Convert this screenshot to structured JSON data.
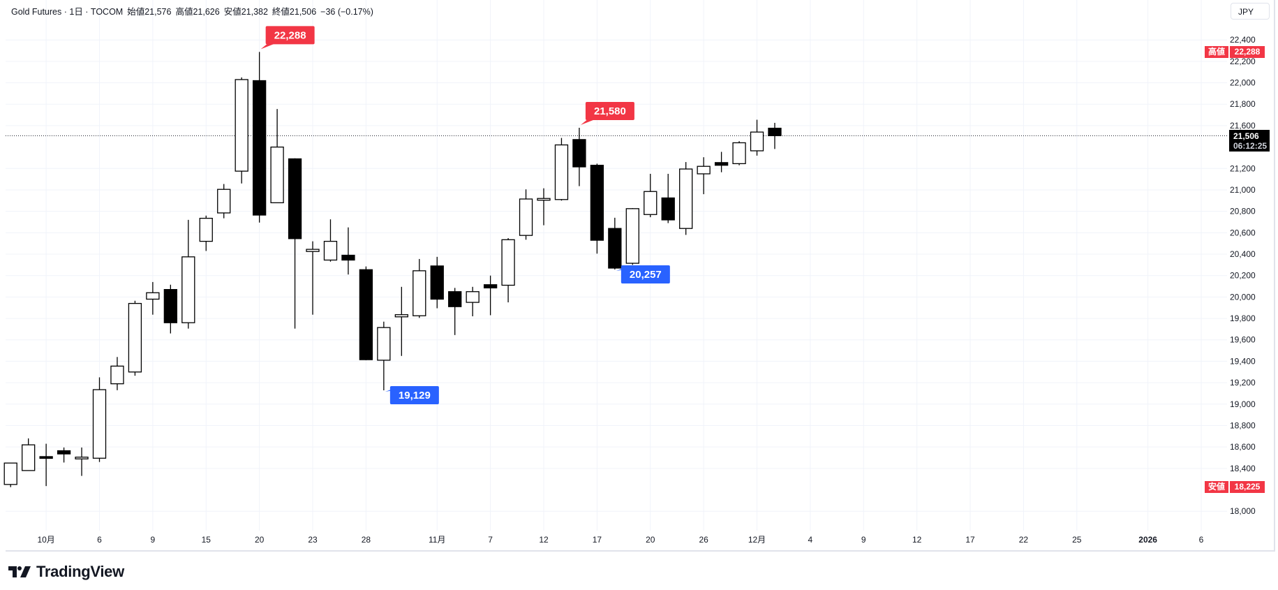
{
  "legend": {
    "symbol": "Gold Futures · 1日 · TOCOM",
    "open": "始値21,576",
    "high": "高値21,626",
    "low": "安値21,382",
    "close": "終値21,506",
    "change": "−36 (−0.17%)"
  },
  "currency_button": "JPY",
  "price_scale_badges": {
    "high_label": "高値",
    "high_value": "22,288",
    "low_label": "安値",
    "low_value": "18,225",
    "last_value": "21,506",
    "countdown": "06:12:25"
  },
  "brand": "TradingView",
  "colors": {
    "up_body": "#ffffff",
    "down_body": "#000000",
    "wick": "#000000",
    "high_marker": "#f23645",
    "low_marker": "#2962ff",
    "grid": "#f0f3fa"
  },
  "chart_data": {
    "type": "candlestick",
    "title": "Gold Futures · 1日 · TOCOM",
    "ylim": [
      17750,
      22600
    ],
    "grid": true,
    "y_ticks": [
      "22,400",
      "22,200",
      "22,000",
      "21,800",
      "21,600",
      "21,200",
      "21,000",
      "20,800",
      "20,600",
      "20,400",
      "20,200",
      "20,000",
      "19,800",
      "19,600",
      "19,400",
      "19,200",
      "19,000",
      "18,800",
      "18,600",
      "18,400",
      "18,000"
    ],
    "x_ticks": [
      {
        "bar": 2,
        "label": "10月"
      },
      {
        "bar": 5,
        "label": "6"
      },
      {
        "bar": 8,
        "label": "9"
      },
      {
        "bar": 11,
        "label": "15"
      },
      {
        "bar": 14,
        "label": "20"
      },
      {
        "bar": 17,
        "label": "23"
      },
      {
        "bar": 20,
        "label": "28"
      },
      {
        "bar": 24,
        "label": "11月"
      },
      {
        "bar": 27,
        "label": "7"
      },
      {
        "bar": 30,
        "label": "12"
      },
      {
        "bar": 33,
        "label": "17"
      },
      {
        "bar": 36,
        "label": "20"
      },
      {
        "bar": 39,
        "label": "26"
      },
      {
        "bar": 42,
        "label": "12月"
      },
      {
        "bar": 45,
        "label": "4"
      },
      {
        "bar": 48,
        "label": "9"
      },
      {
        "bar": 51,
        "label": "12"
      },
      {
        "bar": 54,
        "label": "17"
      },
      {
        "bar": 57,
        "label": "22"
      },
      {
        "bar": 60,
        "label": "25"
      },
      {
        "bar": 64,
        "label": "2026"
      },
      {
        "bar": 67,
        "label": "6"
      }
    ],
    "ohlc": [
      [
        18250,
        18450,
        18225,
        18450
      ],
      [
        18380,
        18680,
        18380,
        18620
      ],
      [
        18510,
        18630,
        18235,
        18500
      ],
      [
        18565,
        18595,
        18455,
        18535
      ],
      [
        18500,
        18595,
        18330,
        18505
      ],
      [
        18495,
        19250,
        18460,
        19135
      ],
      [
        19190,
        19440,
        19130,
        19355
      ],
      [
        19300,
        19965,
        19265,
        19940
      ],
      [
        19980,
        20140,
        19835,
        20040
      ],
      [
        20070,
        20115,
        19660,
        19760
      ],
      [
        19760,
        20720,
        19705,
        20375
      ],
      [
        20520,
        20760,
        20430,
        20735
      ],
      [
        20785,
        21055,
        20735,
        21005
      ],
      [
        21175,
        22050,
        21060,
        22030
      ],
      [
        22020,
        22288,
        20695,
        20765
      ],
      [
        20880,
        21755,
        20880,
        21400
      ],
      [
        21290,
        21295,
        19705,
        20545
      ],
      [
        20425,
        20520,
        19835,
        20445
      ],
      [
        20345,
        20725,
        20330,
        20520
      ],
      [
        20390,
        20650,
        20210,
        20345
      ],
      [
        20255,
        20285,
        19410,
        19415
      ],
      [
        19410,
        19770,
        19129,
        19715
      ],
      [
        19815,
        20095,
        19450,
        19835
      ],
      [
        19825,
        20355,
        19805,
        20245
      ],
      [
        20290,
        20375,
        19895,
        19980
      ],
      [
        20050,
        20085,
        19645,
        19910
      ],
      [
        19950,
        20095,
        19820,
        20050
      ],
      [
        20115,
        20200,
        19830,
        20085
      ],
      [
        20110,
        20550,
        19950,
        20535
      ],
      [
        20575,
        21005,
        20535,
        20915
      ],
      [
        20910,
        21015,
        20670,
        20920
      ],
      [
        20910,
        21485,
        20900,
        21420
      ],
      [
        21470,
        21580,
        21035,
        21215
      ],
      [
        21230,
        21245,
        20405,
        20530
      ],
      [
        20640,
        20740,
        20257,
        20270
      ],
      [
        20315,
        20830,
        20300,
        20825
      ],
      [
        20770,
        21150,
        20745,
        20985
      ],
      [
        20925,
        21150,
        20690,
        20720
      ],
      [
        20640,
        21260,
        20580,
        21195
      ],
      [
        21150,
        21305,
        20960,
        21220
      ],
      [
        21255,
        21355,
        21165,
        21230
      ],
      [
        21245,
        21455,
        21230,
        21440
      ],
      [
        21365,
        21655,
        21320,
        21540
      ],
      [
        21576,
        21626,
        21382,
        21506
      ]
    ],
    "last_price": 21506,
    "annotations": [
      {
        "bar": 14,
        "price": 22288,
        "label": "22,288",
        "kind": "high"
      },
      {
        "bar": 32,
        "price": 21580,
        "label": "21,580",
        "kind": "high"
      },
      {
        "bar": 34,
        "price": 20257,
        "label": "20,257",
        "kind": "low"
      },
      {
        "bar": 21,
        "price": 19129,
        "label": "19,129",
        "kind": "low"
      }
    ]
  }
}
